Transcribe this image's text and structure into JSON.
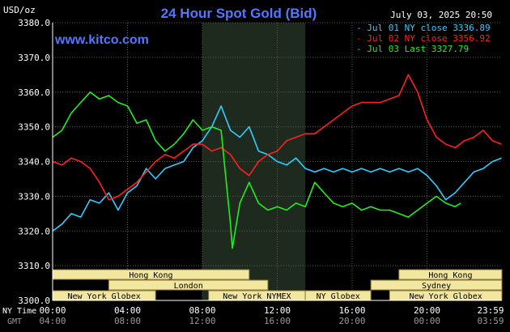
{
  "header": {
    "title": "24 Hour Spot Gold (Bid)",
    "unit_label": "USD/oz",
    "timestamp": "July 03, 2025 20:50",
    "site": "www.kitco.com"
  },
  "colors": {
    "background": "#000000",
    "title": "#5577ff",
    "site": "#5577ff",
    "grid": "#5a5a5a",
    "axis_text": "#ffffff",
    "gmt_text": "#9a9a9a",
    "session_box_fill": "#f2e7a0",
    "session_box_border": "#8c7a3c",
    "highlight": "#1d2a1d",
    "series_jul01": "#33ccff",
    "series_jul02": "#ff2020",
    "series_jul03": "#22ee22"
  },
  "legend": [
    {
      "text": "- Jul 01 NY close 3336.89",
      "color_key": "series_jul01"
    },
    {
      "text": "- Jul 02 NY close 3356.92",
      "color_key": "series_jul02"
    },
    {
      "text": "- Jul 03 Last 3327.79",
      "color_key": "series_jul03"
    }
  ],
  "sessions": [
    {
      "label": "Hong Kong",
      "from": 0.0,
      "to": 10.5
    },
    {
      "label": "Hong Kong",
      "from": 18.5,
      "to": 24.0
    },
    {
      "label": "London",
      "from": 3.0,
      "to": 11.5
    },
    {
      "label": "Sydney",
      "from": 17.0,
      "to": 24.0
    },
    {
      "label": "New York Globex",
      "from": 0.0,
      "to": 5.5
    },
    {
      "label": "New York NYMEX",
      "from": 8.33,
      "to": 13.5
    },
    {
      "label": "NY Globex",
      "from": 13.5,
      "to": 17.0
    },
    {
      "label": "New York Globex",
      "from": 18.0,
      "to": 24.0
    }
  ],
  "bottom_axis": {
    "ny_time_label": "NY Time",
    "gmt_label": "GMT",
    "ny_ticks": [
      "00:00",
      "04:00",
      "08:00",
      "12:00",
      "16:00",
      "20:00",
      "23:59"
    ],
    "gmt_ticks": [
      "04:00",
      "08:00",
      "12:00",
      "16:00",
      "20:00",
      "00:00",
      "03:59"
    ]
  },
  "chart_data": {
    "type": "line",
    "title": "24 Hour Spot Gold (Bid)",
    "ylabel": "USD/oz",
    "ylim": [
      3300,
      3380
    ],
    "yticks": [
      "3380.0",
      "3370.0",
      "3360.0",
      "3350.0",
      "3340.0",
      "3330.0",
      "3320.0",
      "3310.0",
      "3300.0"
    ],
    "x_unit": "hours (NY time)",
    "xlim": [
      0,
      24
    ],
    "highlight_range": [
      8,
      13.5
    ],
    "grid": true,
    "legend_position": "top-right",
    "series": [
      {
        "name": "Jul 01 NY close 3336.89",
        "color_key": "series_jul01",
        "points": [
          [
            0,
            3320
          ],
          [
            0.5,
            3322
          ],
          [
            1,
            3325
          ],
          [
            1.5,
            3324
          ],
          [
            2,
            3329
          ],
          [
            2.5,
            3328
          ],
          [
            3,
            3331
          ],
          [
            3.5,
            3326
          ],
          [
            4,
            3331
          ],
          [
            4.5,
            3333
          ],
          [
            5,
            3338
          ],
          [
            5.5,
            3335
          ],
          [
            6,
            3338
          ],
          [
            6.5,
            3339
          ],
          [
            7,
            3340
          ],
          [
            7.5,
            3344
          ],
          [
            8,
            3346
          ],
          [
            8.5,
            3350
          ],
          [
            9,
            3356
          ],
          [
            9.5,
            3349
          ],
          [
            10,
            3347
          ],
          [
            10.5,
            3350
          ],
          [
            11,
            3343
          ],
          [
            11.5,
            3342
          ],
          [
            12,
            3340
          ],
          [
            12.5,
            3339
          ],
          [
            13,
            3341
          ],
          [
            13.5,
            3338
          ],
          [
            14,
            3337
          ],
          [
            14.5,
            3338
          ],
          [
            15,
            3337
          ],
          [
            15.5,
            3338
          ],
          [
            16,
            3337
          ],
          [
            16.5,
            3338
          ],
          [
            17,
            3337
          ],
          [
            17.5,
            3338
          ],
          [
            18,
            3337
          ],
          [
            18.5,
            3338
          ],
          [
            19,
            3337
          ],
          [
            19.5,
            3338
          ],
          [
            20,
            3336
          ],
          [
            20.5,
            3333
          ],
          [
            21,
            3329
          ],
          [
            21.5,
            3331
          ],
          [
            22,
            3334
          ],
          [
            22.5,
            3337
          ],
          [
            23,
            3338
          ],
          [
            23.5,
            3340
          ],
          [
            23.98,
            3341
          ]
        ]
      },
      {
        "name": "Jul 02 NY close 3356.92",
        "color_key": "series_jul02",
        "points": [
          [
            0,
            3340
          ],
          [
            0.5,
            3339
          ],
          [
            1,
            3341
          ],
          [
            1.5,
            3340
          ],
          [
            2,
            3338
          ],
          [
            2.5,
            3334
          ],
          [
            3,
            3329
          ],
          [
            3.5,
            3330
          ],
          [
            4,
            3332
          ],
          [
            4.5,
            3334
          ],
          [
            5,
            3337
          ],
          [
            5.5,
            3340
          ],
          [
            6,
            3342
          ],
          [
            6.5,
            3341
          ],
          [
            7,
            3343
          ],
          [
            7.5,
            3345
          ],
          [
            8,
            3345
          ],
          [
            8.5,
            3343
          ],
          [
            9,
            3344
          ],
          [
            9.5,
            3342
          ],
          [
            10,
            3338
          ],
          [
            10.5,
            3336
          ],
          [
            11,
            3340
          ],
          [
            11.5,
            3342
          ],
          [
            12,
            3343
          ],
          [
            12.5,
            3346
          ],
          [
            13,
            3347
          ],
          [
            13.5,
            3348
          ],
          [
            14,
            3348
          ],
          [
            14.5,
            3350
          ],
          [
            15,
            3352
          ],
          [
            15.5,
            3354
          ],
          [
            16,
            3356
          ],
          [
            16.5,
            3357
          ],
          [
            17,
            3357
          ],
          [
            17.5,
            3357
          ],
          [
            18,
            3358
          ],
          [
            18.5,
            3359
          ],
          [
            19,
            3365
          ],
          [
            19.5,
            3360
          ],
          [
            20,
            3352
          ],
          [
            20.5,
            3347
          ],
          [
            21,
            3345
          ],
          [
            21.5,
            3344
          ],
          [
            22,
            3346
          ],
          [
            22.5,
            3347
          ],
          [
            23,
            3349
          ],
          [
            23.5,
            3346
          ],
          [
            23.98,
            3345
          ]
        ]
      },
      {
        "name": "Jul 03 Last 3327.79",
        "color_key": "series_jul03",
        "points": [
          [
            0,
            3347
          ],
          [
            0.5,
            3349
          ],
          [
            1,
            3354
          ],
          [
            1.5,
            3357
          ],
          [
            2,
            3360
          ],
          [
            2.5,
            3358
          ],
          [
            3,
            3359
          ],
          [
            3.5,
            3357
          ],
          [
            4,
            3356
          ],
          [
            4.5,
            3351
          ],
          [
            5,
            3352
          ],
          [
            5.5,
            3346
          ],
          [
            6,
            3343
          ],
          [
            6.5,
            3345
          ],
          [
            7,
            3348
          ],
          [
            7.5,
            3352
          ],
          [
            8,
            3349
          ],
          [
            8.5,
            3350
          ],
          [
            9,
            3349
          ],
          [
            9.5,
            3322
          ],
          [
            9.6,
            3315
          ],
          [
            10,
            3328
          ],
          [
            10.5,
            3334
          ],
          [
            11,
            3328
          ],
          [
            11.5,
            3326
          ],
          [
            12,
            3327
          ],
          [
            12.5,
            3326
          ],
          [
            13,
            3328
          ],
          [
            13.5,
            3327
          ],
          [
            14,
            3334
          ],
          [
            14.5,
            3331
          ],
          [
            15,
            3328
          ],
          [
            15.5,
            3327
          ],
          [
            16,
            3328
          ],
          [
            16.5,
            3326
          ],
          [
            17,
            3327
          ],
          [
            17.5,
            3326
          ],
          [
            18,
            3326
          ],
          [
            18.5,
            3325
          ],
          [
            19,
            3324
          ],
          [
            19.5,
            3326
          ],
          [
            20,
            3328
          ],
          [
            20.5,
            3330
          ],
          [
            21,
            3328
          ],
          [
            21.5,
            3327
          ],
          [
            21.8,
            3328
          ]
        ]
      }
    ]
  }
}
